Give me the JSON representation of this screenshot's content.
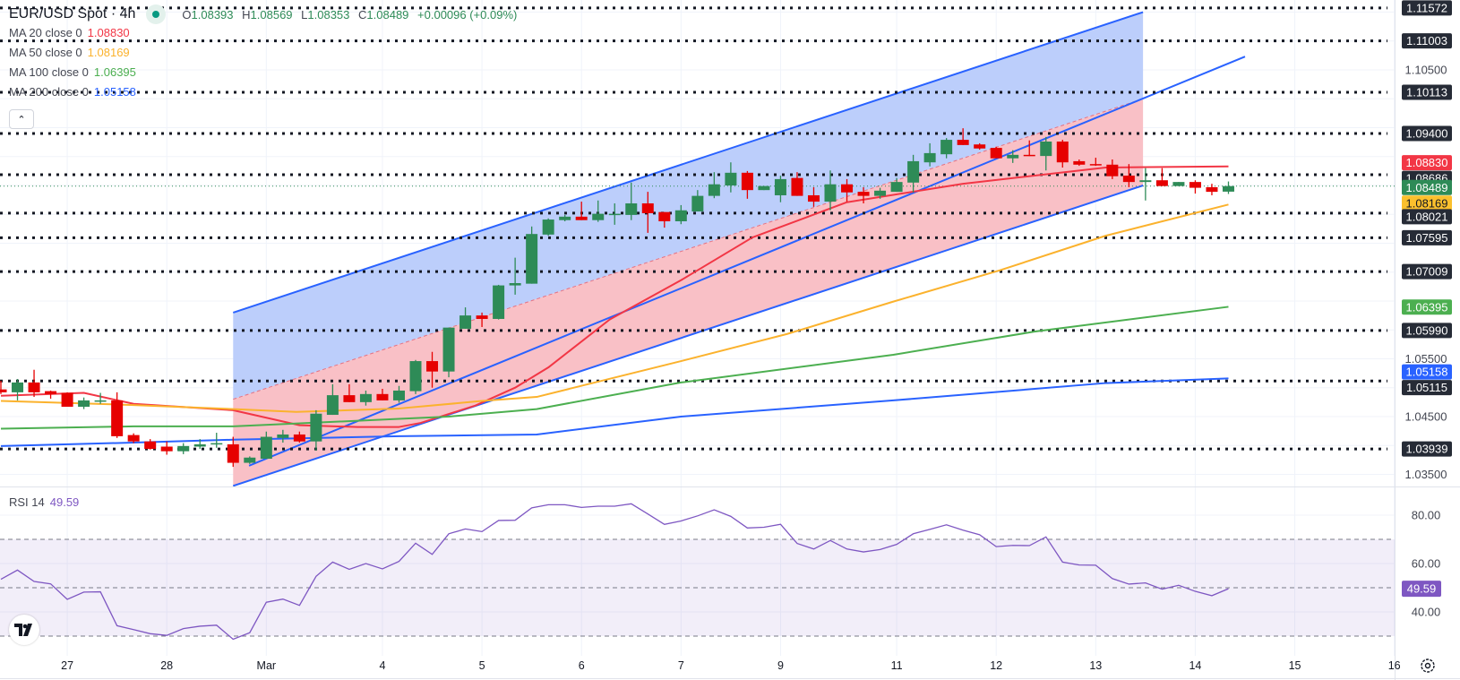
{
  "header": {
    "symbol": "EUR/USD Spot · 4h",
    "ohlc": {
      "o_label": "O",
      "o": "1.08393",
      "h_label": "H",
      "h": "1.08569",
      "l_label": "L",
      "l": "1.08353",
      "c_label": "C",
      "c": "1.08489",
      "change": "+0.00096 (+0.09%)"
    }
  },
  "indicators": [
    {
      "label": "MA 20 close 0",
      "value": "1.08830",
      "color": "#f23645"
    },
    {
      "label": "MA 50 close 0",
      "value": "1.08169",
      "color": "#fbb22d"
    },
    {
      "label": "MA 100 close 0",
      "value": "1.06395",
      "color": "#4caf50"
    },
    {
      "label": "MA 200 close 0",
      "value": "1.05158",
      "color": "#2962ff"
    }
  ],
  "collapse_icon": "chevron-up-icon",
  "rsi_legend": {
    "label": "RSI 14",
    "value": "49.59"
  },
  "logo_text": "TV",
  "chart_data": {
    "type": "candlestick",
    "title": "EUR/USD Spot · 4h",
    "colors": {
      "up": "#2e8b57",
      "down": "#e60000",
      "channel_upper_fill": "#bccefb",
      "channel_lower_fill": "#f9c0c6",
      "line_blue": "#2962ff",
      "rsi": "#7e57c2",
      "level": "#131722"
    },
    "ylim": [
      1.0329,
      1.1171
    ],
    "candles": [
      [
        1.0497,
        1.0512,
        1.0489,
        1.0492
      ],
      [
        1.0492,
        1.0515,
        1.0478,
        1.0509
      ],
      [
        1.0509,
        1.0531,
        1.0484,
        1.0492
      ],
      [
        1.0494,
        1.0495,
        1.0481,
        1.0489
      ],
      [
        1.0491,
        1.0492,
        1.0467,
        1.0467
      ],
      [
        1.0467,
        1.0483,
        1.0463,
        1.0478
      ],
      [
        1.0477,
        1.0491,
        1.0472,
        1.0478
      ],
      [
        1.0478,
        1.0492,
        1.0413,
        1.0416
      ],
      [
        1.0418,
        1.0421,
        1.0404,
        1.0407
      ],
      [
        1.0407,
        1.0411,
        1.0393,
        1.0394
      ],
      [
        1.0398,
        1.0407,
        1.0384,
        1.039
      ],
      [
        1.039,
        1.0404,
        1.0385,
        1.0399
      ],
      [
        1.0398,
        1.0411,
        1.0394,
        1.0402
      ],
      [
        1.0402,
        1.0422,
        1.0396,
        1.0404
      ],
      [
        1.0402,
        1.0415,
        1.0363,
        1.037
      ],
      [
        1.037,
        1.0381,
        1.0368,
        1.0379
      ],
      [
        1.0377,
        1.0424,
        1.0377,
        1.0415
      ],
      [
        1.0413,
        1.0427,
        1.0405,
        1.0419
      ],
      [
        1.0419,
        1.0424,
        1.0405,
        1.0407
      ],
      [
        1.0407,
        1.0461,
        1.0391,
        1.0455
      ],
      [
        1.0453,
        1.0506,
        1.0453,
        1.0487
      ],
      [
        1.0487,
        1.0506,
        1.0475,
        1.0475
      ],
      [
        1.0475,
        1.0495,
        1.0469,
        1.0489
      ],
      [
        1.0489,
        1.0498,
        1.0478,
        1.0478
      ],
      [
        1.0478,
        1.0503,
        1.0474,
        1.0495
      ],
      [
        1.0494,
        1.0548,
        1.0489,
        1.0546
      ],
      [
        1.0546,
        1.0562,
        1.05,
        1.0528
      ],
      [
        1.0528,
        1.0604,
        1.0518,
        1.0604
      ],
      [
        1.0602,
        1.0639,
        1.0602,
        1.0625
      ],
      [
        1.0625,
        1.063,
        1.0605,
        1.0619
      ],
      [
        1.0619,
        1.0678,
        1.0618,
        1.0677
      ],
      [
        1.0677,
        1.0725,
        1.0661,
        1.0681
      ],
      [
        1.068,
        1.0779,
        1.068,
        1.0766
      ],
      [
        1.0765,
        1.0793,
        1.0763,
        1.0791
      ],
      [
        1.079,
        1.0799,
        1.0788,
        1.0796
      ],
      [
        1.0796,
        1.0822,
        1.079,
        1.079
      ],
      [
        1.079,
        1.0824,
        1.0787,
        1.0801
      ],
      [
        1.0799,
        1.0819,
        1.0782,
        1.0801
      ],
      [
        1.0799,
        1.0855,
        1.079,
        1.0819
      ],
      [
        1.0819,
        1.0839,
        1.0768,
        1.0802
      ],
      [
        1.0804,
        1.0804,
        1.0777,
        1.0788
      ],
      [
        1.0788,
        1.0816,
        1.0783,
        1.0807
      ],
      [
        1.0805,
        1.0842,
        1.0805,
        1.0832
      ],
      [
        1.0832,
        1.0873,
        1.0828,
        1.0852
      ],
      [
        1.085,
        1.089,
        1.0838,
        1.0872
      ],
      [
        1.0872,
        1.0875,
        1.0827,
        1.0842
      ],
      [
        1.0842,
        1.0849,
        1.0842,
        1.0849
      ],
      [
        1.0833,
        1.0867,
        1.0821,
        1.0861
      ],
      [
        1.0863,
        1.0873,
        1.0832,
        1.0832
      ],
      [
        1.0833,
        1.0847,
        1.0813,
        1.0822
      ],
      [
        1.0822,
        1.0876,
        1.0807,
        1.0852
      ],
      [
        1.0852,
        1.0861,
        1.0822,
        1.0838
      ],
      [
        1.0839,
        1.0847,
        1.0819,
        1.0832
      ],
      [
        1.0832,
        1.0846,
        1.0827,
        1.0841
      ],
      [
        1.0839,
        1.0863,
        1.0839,
        1.0856
      ],
      [
        1.0855,
        1.0903,
        1.0838,
        1.0892
      ],
      [
        1.089,
        1.0923,
        1.0883,
        1.0906
      ],
      [
        1.0904,
        1.0932,
        1.0897,
        1.0929
      ],
      [
        1.0929,
        1.0949,
        1.092,
        1.092
      ],
      [
        1.0921,
        1.0923,
        1.0912,
        1.0914
      ],
      [
        1.0915,
        1.0917,
        1.0897,
        1.0897
      ],
      [
        1.0897,
        1.0911,
        1.0889,
        1.0903
      ],
      [
        1.0903,
        1.0928,
        1.0901,
        1.0901
      ],
      [
        1.0901,
        1.0934,
        1.0876,
        1.0926
      ],
      [
        1.0926,
        1.0929,
        1.0881,
        1.089
      ],
      [
        1.0892,
        1.0895,
        1.0884,
        1.0886
      ],
      [
        1.0887,
        1.0898,
        1.0884,
        1.0886
      ],
      [
        1.0886,
        1.0895,
        1.0861,
        1.0866
      ],
      [
        1.0867,
        1.0887,
        1.0847,
        1.0856
      ],
      [
        1.0856,
        1.088,
        1.0824,
        1.0859
      ],
      [
        1.0859,
        1.088,
        1.0849,
        1.0849
      ],
      [
        1.0849,
        1.0856,
        1.0849,
        1.0856
      ],
      [
        1.0856,
        1.0859,
        1.0836,
        1.0846
      ],
      [
        1.0847,
        1.0853,
        1.0833,
        1.0839
      ],
      [
        1.08393,
        1.08569,
        1.08353,
        1.08489
      ]
    ],
    "ma_series": [
      {
        "name": "MA 20",
        "color": "#f23645",
        "points": [
          [
            0,
            1.0486
          ],
          [
            5,
            1.0491
          ],
          [
            8,
            1.0472
          ],
          [
            14,
            1.0461
          ],
          [
            18,
            1.0435
          ],
          [
            21.5,
            1.0432
          ],
          [
            24,
            1.0432
          ],
          [
            25.3,
            1.0439
          ],
          [
            28.6,
            1.0469
          ],
          [
            31,
            1.05
          ],
          [
            33,
            1.0535
          ],
          [
            36.7,
            1.0618
          ],
          [
            41,
            1.0686
          ],
          [
            45.3,
            1.076
          ],
          [
            51,
            1.0821
          ],
          [
            58,
            1.0853
          ],
          [
            66.6,
            1.0881
          ],
          [
            74,
            1.0883
          ]
        ]
      },
      {
        "name": "MA 50",
        "color": "#fbb22d",
        "points": [
          [
            0,
            1.0477
          ],
          [
            8,
            1.047
          ],
          [
            14,
            1.0463
          ],
          [
            17.8,
            1.0458
          ],
          [
            24,
            1.0464
          ],
          [
            29,
            1.0477
          ],
          [
            32.3,
            1.0484
          ],
          [
            41,
            1.0546
          ],
          [
            47.4,
            1.0593
          ],
          [
            53.8,
            1.0649
          ],
          [
            60.2,
            1.0703
          ],
          [
            66.6,
            1.0763
          ],
          [
            74,
            1.0817
          ]
        ]
      },
      {
        "name": "MA 100",
        "color": "#4caf50",
        "points": [
          [
            0,
            1.0429
          ],
          [
            8,
            1.0433
          ],
          [
            14,
            1.0433
          ],
          [
            24,
            1.0446
          ],
          [
            27,
            1.045
          ],
          [
            32.3,
            1.0463
          ],
          [
            41,
            1.0509
          ],
          [
            53.8,
            1.0557
          ],
          [
            62.3,
            1.0597
          ],
          [
            74,
            1.064
          ]
        ]
      },
      {
        "name": "MA 200",
        "color": "#2962ff",
        "points": [
          [
            0,
            1.0399
          ],
          [
            8,
            1.0405
          ],
          [
            14,
            1.041
          ],
          [
            24,
            1.0416
          ],
          [
            32.3,
            1.0419
          ],
          [
            41,
            1.045
          ],
          [
            53.8,
            1.0478
          ],
          [
            66.6,
            1.0508
          ],
          [
            74,
            1.0516
          ]
        ]
      }
    ],
    "channel": {
      "start_index": 14.0,
      "end_index": 68.85,
      "mid_start": 1.048,
      "mid_end": 1.1,
      "half_width": 0.015
    },
    "trendline": {
      "start": [
        14.96,
        1.0365
      ],
      "end": [
        75.0,
        1.1073
      ]
    },
    "levels": [
      1.11572,
      1.11003,
      1.10113,
      1.094,
      1.08686,
      1.08021,
      1.07595,
      1.07009,
      1.0599,
      1.05115,
      1.03939
    ],
    "current_price": 1.08489,
    "price_labels": [
      {
        "text": "1.11572",
        "value": 1.11572,
        "kind": "level"
      },
      {
        "text": "1.11003",
        "value": 1.11003,
        "kind": "level"
      },
      {
        "text": "1.10113",
        "value": 1.10113,
        "kind": "level"
      },
      {
        "text": "1.09400",
        "value": 1.094,
        "kind": "level"
      },
      {
        "text": "1.08830",
        "value": 1.0883,
        "kind": "ma20"
      },
      {
        "text": "1.08686",
        "value": 1.08686,
        "kind": "level"
      },
      {
        "text": "1.08489",
        "value": 1.08489,
        "kind": "current"
      },
      {
        "text": "1.08169",
        "value": 1.08169,
        "kind": "ma50"
      },
      {
        "text": "1.08021",
        "value": 1.08021,
        "kind": "level"
      },
      {
        "text": "1.07595",
        "value": 1.07595,
        "kind": "level"
      },
      {
        "text": "1.07009",
        "value": 1.07009,
        "kind": "level"
      },
      {
        "text": "1.06395",
        "value": 1.06395,
        "kind": "ma100"
      },
      {
        "text": "1.05990",
        "value": 1.0599,
        "kind": "level"
      },
      {
        "text": "1.05158",
        "value": 1.05158,
        "kind": "ma200"
      },
      {
        "text": "1.05115",
        "value": 1.05115,
        "kind": "level"
      },
      {
        "text": "1.03939",
        "value": 1.03939,
        "kind": "level"
      }
    ],
    "price_axis_ticks": [
      {
        "text": "1.10500",
        "value": 1.105
      },
      {
        "text": "1.05500",
        "value": 1.055
      },
      {
        "text": "1.04500",
        "value": 1.045
      },
      {
        "text": "1.03500",
        "value": 1.035
      }
    ],
    "grid": true,
    "x_ticks": [
      {
        "text": "27",
        "index": 4
      },
      {
        "text": "28",
        "index": 10
      },
      {
        "text": "Mar",
        "index": 16
      },
      {
        "text": "4",
        "index": 23
      },
      {
        "text": "5",
        "index": 29
      },
      {
        "text": "6",
        "index": 35
      },
      {
        "text": "7",
        "index": 41
      },
      {
        "text": "9",
        "index": 47
      },
      {
        "text": "11",
        "index": 54
      },
      {
        "text": "12",
        "index": 60
      },
      {
        "text": "13",
        "index": 66
      },
      {
        "text": "14",
        "index": 72
      },
      {
        "text": "15",
        "index": 78
      },
      {
        "text": "16",
        "index": 84
      }
    ],
    "rsi": {
      "label": "RSI 14",
      "period": 14,
      "upper": 70,
      "middle": 50,
      "lower": 30,
      "ticks": [
        {
          "text": "80.00",
          "value": 80
        },
        {
          "text": "60.00",
          "value": 60
        },
        {
          "text": "40.00",
          "value": 40
        }
      ],
      "current_label": "49.59",
      "values": [
        53.5,
        57.3,
        52.6,
        51.6,
        45.2,
        48.2,
        48.3,
        34.3,
        32.7,
        31.0,
        30.3,
        33.1,
        34.1,
        34.5,
        28.7,
        31.4,
        44.0,
        45.3,
        42.7,
        54.7,
        60.6,
        57.6,
        60.0,
        57.8,
        60.9,
        68.4,
        63.8,
        72.3,
        74.3,
        73.2,
        77.8,
        77.9,
        83.0,
        84.3,
        84.3,
        83.2,
        83.7,
        83.7,
        84.7,
        80.5,
        76.2,
        77.6,
        79.7,
        82.2,
        79.5,
        74.7,
        75.0,
        76.2,
        68.3,
        66.0,
        69.5,
        66.0,
        64.8,
        65.8,
        67.9,
        72.3,
        74.1,
        76.0,
        73.8,
        71.9,
        67.0,
        67.5,
        67.4,
        71.0,
        60.6,
        59.4,
        59.3,
        53.8,
        51.5,
        52.0,
        49.4,
        51.0,
        48.5,
        46.7,
        49.59
      ]
    }
  }
}
